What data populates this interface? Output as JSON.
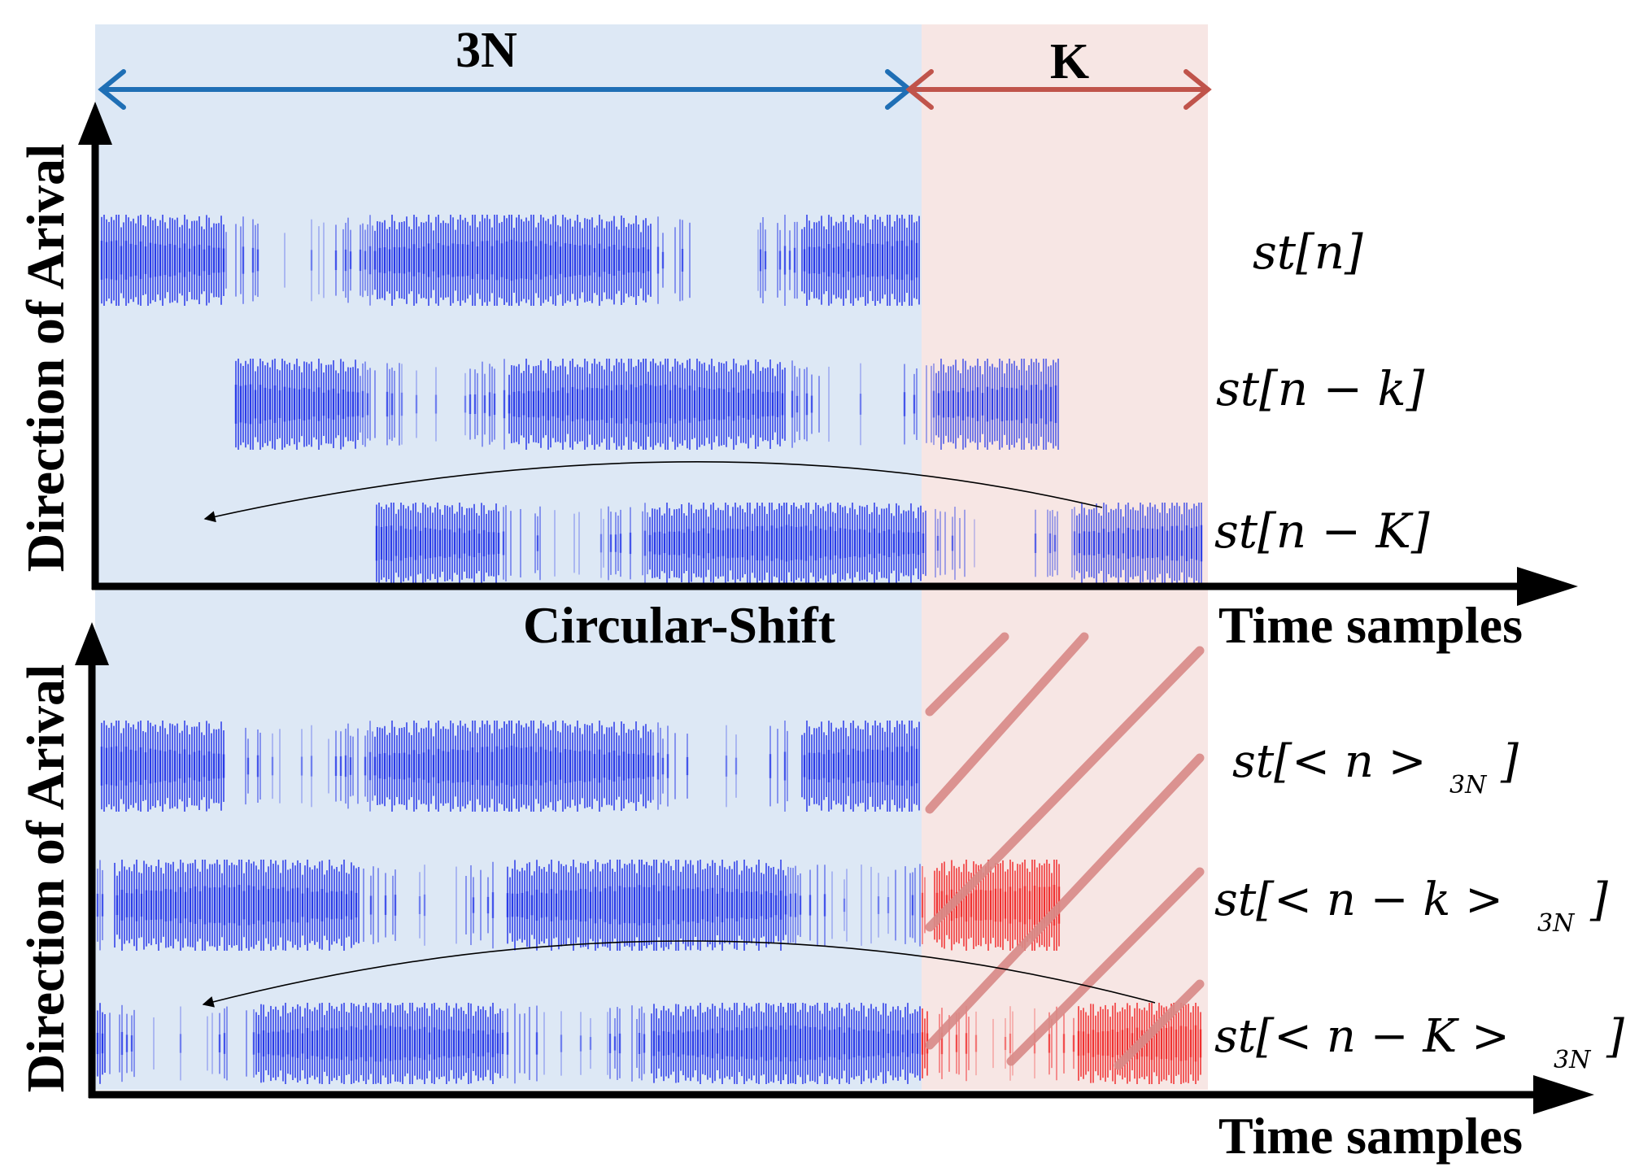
{
  "top_panel": {
    "span_3n_label": "3N",
    "span_k_label": "K",
    "y_axis_label": "Direction of Arival",
    "x_axis_label": "Time samples",
    "shift_label": "Circular-Shift",
    "signal_labels": [
      {
        "base": "st[n]",
        "sub": ""
      },
      {
        "base": "st[n − k]",
        "sub": ""
      },
      {
        "base": "st[n − K]",
        "sub": ""
      }
    ]
  },
  "bottom_panel": {
    "y_axis_label": "Direction of Arival",
    "x_axis_label": "Time samples",
    "signal_labels": [
      {
        "base": "st[< n >",
        "sub": "3N",
        "close": "]"
      },
      {
        "base": "st[< n − k >",
        "sub": "3N",
        "close": "]"
      },
      {
        "base": "st[< n − K >",
        "sub": "3N",
        "close": "]"
      }
    ]
  },
  "colors": {
    "region_3n": "#dde8f5",
    "region_k": "#f7e6e4",
    "arrow_3n": "#1f6fb5",
    "arrow_k": "#c0544b",
    "signal_blue": "#2a3be8",
    "signal_red": "#f03030",
    "hatch": "#d98a87"
  }
}
